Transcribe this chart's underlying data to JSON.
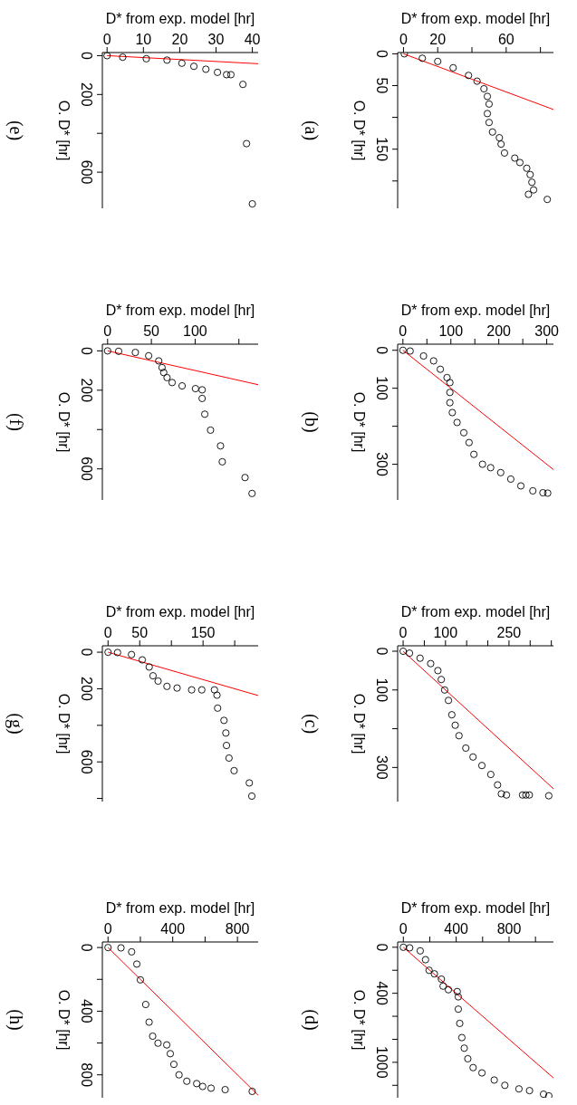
{
  "chart_data": [
    {
      "type": "scatter",
      "title": "(a)",
      "xlabel": "D* from exp. model [hr]",
      "ylabel": "O. D* [hr]",
      "xlim": [
        -3.4,
        87.6
      ],
      "xticks": [
        0,
        20,
        {
          "value": 40,
          "label": null
        },
        60,
        {
          "value": 80,
          "label": null
        }
      ],
      "ylim": [
        243,
        -2
      ],
      "yticks": [
        0,
        50,
        {
          "value": 100,
          "label": null
        },
        150,
        {
          "value": 200,
          "label": null
        }
      ],
      "series": [
        {
          "marker": "circle",
          "color": "#000000",
          "x": [
            0.5,
            11,
            20,
            29,
            38,
            43,
            47,
            49,
            50,
            49,
            50,
            52,
            56,
            57,
            59,
            65,
            68,
            72,
            74,
            75,
            76,
            73,
            84
          ],
          "values": [
            0,
            7,
            12,
            22,
            34,
            43,
            55,
            67,
            79,
            94,
            108,
            123,
            132,
            142,
            156,
            164,
            171,
            180,
            190,
            202,
            214,
            221,
            229
          ]
        },
        {
          "type": "line",
          "color": "#ff0000",
          "x": [
            0,
            87.6
          ],
          "values": [
            0,
            87.6
          ]
        }
      ]
    },
    {
      "type": "scatter",
      "title": "(b)",
      "xlabel": "D* from exp. model [hr]",
      "ylabel": "O. D* [hr]",
      "xlim": [
        -11,
        314
      ],
      "xticks": [
        0,
        {
          "value": 50,
          "label": null
        },
        100,
        {
          "value": 150,
          "label": null
        },
        200,
        {
          "value": 250,
          "label": null
        },
        300
      ],
      "ylim": [
        394,
        -16
      ],
      "yticks": [
        0,
        100,
        {
          "value": 200,
          "label": null
        },
        300
      ],
      "series": [
        {
          "marker": "circle",
          "color": "#000000",
          "x": [
            0,
            15,
            43,
            64,
            78,
            92,
            98,
            98,
            98,
            103,
            113,
            127,
            138,
            148,
            166,
            183,
            204,
            225,
            246,
            271,
            292,
            302
          ],
          "values": [
            0,
            2,
            15,
            28,
            50,
            72,
            85,
            111,
            138,
            164,
            190,
            217,
            243,
            274,
            300,
            309,
            322,
            339,
            357,
            370,
            375,
            376
          ]
        },
        {
          "type": "line",
          "color": "#ff0000",
          "x": [
            0,
            314
          ],
          "values": [
            0,
            314
          ]
        }
      ]
    },
    {
      "type": "scatter",
      "title": "(c)",
      "xlabel": "D* from exp. model [hr]",
      "ylabel": "O. D* [hr]",
      "xlim": [
        -13,
        355
      ],
      "xticks": [
        0,
        {
          "value": 50,
          "label": null
        },
        100,
        {
          "value": 150,
          "label": null
        },
        {
          "value": 200,
          "label": null
        },
        250,
        {
          "value": 300,
          "label": null
        },
        {
          "value": 350,
          "label": null
        }
      ],
      "ylim": [
        388,
        -14
      ],
      "yticks": [
        0,
        100,
        {
          "value": 200,
          "label": null
        },
        300
      ],
      "series": [
        {
          "marker": "circle",
          "color": "#000000",
          "x": [
            0,
            15,
            40,
            65,
            82,
            90,
            98,
            107,
            115,
            123,
            132,
            148,
            165,
            186,
            207,
            223,
            232,
            244,
            282,
            290,
            298,
            344
          ],
          "values": [
            0,
            5,
            18,
            32,
            50,
            73,
            100,
            127,
            164,
            191,
            218,
            250,
            273,
            295,
            318,
            345,
            368,
            371,
            371,
            371,
            371,
            373
          ]
        },
        {
          "type": "line",
          "color": "#ff0000",
          "x": [
            0,
            355
          ],
          "values": [
            0,
            355
          ]
        }
      ]
    },
    {
      "type": "scatter",
      "title": "(d)",
      "xlabel": "D* from exp. model [hr]",
      "ylabel": "O. D* [hr]",
      "xlim": [
        -43,
        1136
      ],
      "xticks": [
        0,
        {
          "value": 200,
          "label": null
        },
        400,
        {
          "value": 600,
          "label": null
        },
        800,
        {
          "value": 1000,
          "label": null
        }
      ],
      "ylim": [
        1308,
        -46
      ],
      "yticks": [
        0,
        {
          "value": 200,
          "label": null
        },
        400,
        {
          "value": 600,
          "label": null
        },
        {
          "value": 800,
          "label": null
        },
        1000,
        {
          "value": 1200,
          "label": null
        }
      ],
      "series": [
        {
          "marker": "circle",
          "color": "#000000",
          "x": [
            0,
            48,
            128,
            168,
            195,
            235,
            288,
            301,
            341,
            408,
            416,
            416,
            427,
            443,
            461,
            488,
            528,
            595,
            688,
            768,
            875,
            955,
            1061,
            1101
          ],
          "values": [
            0,
            5,
            31,
            108,
            200,
            231,
            277,
            338,
            369,
            385,
            431,
            538,
            662,
            785,
            877,
            969,
            1046,
            1092,
            1154,
            1200,
            1231,
            1246,
            1277,
            1292
          ]
        },
        {
          "type": "line",
          "color": "#ff0000",
          "x": [
            0,
            1136
          ],
          "values": [
            0,
            1136
          ]
        }
      ]
    },
    {
      "type": "scatter",
      "title": "(e)",
      "xlabel": "D* from exp. model [hr]",
      "ylabel": "O. D* [hr]",
      "xlim": [
        -1.3,
        41.6
      ],
      "xticks": [
        0,
        10,
        20,
        30,
        40
      ],
      "ylim": [
        786,
        -16
      ],
      "yticks": [
        0,
        200,
        {
          "value": 400,
          "label": null
        },
        600
      ],
      "series": [
        {
          "marker": "circle",
          "color": "#000000",
          "x": [
            0,
            4.3,
            10.8,
            16.5,
            20.6,
            23.9,
            27.2,
            30.4,
            32.9,
            34.1,
            37.4,
            38.4,
            40
          ],
          "values": [
            0,
            8,
            16,
            23,
            39,
            55,
            70,
            86,
            98,
            98,
            148,
            453,
            763
          ]
        },
        {
          "type": "line",
          "color": "#ff0000",
          "x": [
            0,
            41.6
          ],
          "values": [
            0,
            41.6
          ]
        }
      ]
    },
    {
      "type": "scatter",
      "title": "(f)",
      "xlabel": "D* from exp. model [hr]",
      "ylabel": "O. D* [hr]",
      "xlim": [
        -6,
        172
      ],
      "xticks": [
        0,
        50,
        100,
        {
          "value": 150,
          "label": null
        }
      ],
      "ylim": [
        758,
        -34
      ],
      "yticks": [
        0,
        200,
        {
          "value": 400,
          "label": null
        },
        600
      ],
      "series": [
        {
          "marker": "circle",
          "color": "#000000",
          "x": [
            0,
            12.6,
            31.7,
            46.9,
            58.4,
            62.2,
            64.1,
            67.9,
            73.7,
            85.1,
            100.4,
            108,
            108,
            111,
            117.6,
            129,
            131,
            157,
            165
          ],
          "values": [
            0,
            2,
            8,
            25,
            51,
            85,
            110,
            136,
            161,
            178,
            192,
            198,
            242,
            322,
            403,
            483,
            564,
            644,
            725
          ]
        },
        {
          "type": "line",
          "color": "#ff0000",
          "x": [
            0,
            172
          ],
          "values": [
            0,
            172
          ]
        }
      ]
    },
    {
      "type": "scatter",
      "title": "(g)",
      "xlabel": "D* from exp. model [hr]",
      "ylabel": "O. D* [hr]",
      "xlim": [
        -9,
        237
      ],
      "xticks": [
        0,
        50,
        {
          "value": 100,
          "label": null
        },
        150,
        {
          "value": 200,
          "label": null
        }
      ],
      "ylim": [
        817,
        -35
      ],
      "yticks": [
        0,
        200,
        {
          "value": 400,
          "label": null
        },
        600,
        {
          "value": 800,
          "label": null
        }
      ],
      "series": [
        {
          "marker": "circle",
          "color": "#000000",
          "x": [
            0,
            15,
            37,
            54,
            65,
            71,
            79,
            93,
            109,
            132,
            148,
            168,
            172,
            173,
            183,
            186,
            187,
            191,
            199,
            223,
            227
          ],
          "values": [
            0,
            2,
            13,
            42,
            81,
            129,
            158,
            187,
            196,
            206,
            206,
            206,
            235,
            306,
            373,
            442,
            510,
            579,
            648,
            715,
            787
          ]
        },
        {
          "type": "line",
          "color": "#ff0000",
          "x": [
            0,
            237
          ],
          "values": [
            0,
            237
          ]
        }
      ]
    },
    {
      "type": "scatter",
      "title": "(h)",
      "xlabel": "D* from exp. model [hr]",
      "ylabel": "O. D* [hr]",
      "xlim": [
        -35,
        928
      ],
      "xticks": [
        0,
        {
          "value": 200,
          "label": null
        },
        400,
        {
          "value": 600,
          "label": null
        },
        800
      ],
      "ylim": [
        944,
        -35
      ],
      "yticks": [
        0,
        {
          "value": 200,
          "label": null
        },
        400,
        {
          "value": 600,
          "label": null
        },
        800
      ],
      "series": [
        {
          "marker": "circle",
          "color": "#000000",
          "x": [
            0,
            80,
            146,
            178,
            200,
            233,
            254,
            276,
            309,
            363,
            385,
            407,
            439,
            487,
            548,
            585,
            637,
            724,
            891
          ],
          "values": [
            0,
            2,
            27,
            104,
            203,
            358,
            469,
            557,
            601,
            612,
            667,
            734,
            800,
            840,
            855,
            873,
            884,
            893,
            904
          ]
        },
        {
          "type": "line",
          "color": "#ff0000",
          "x": [
            0,
            928
          ],
          "values": [
            0,
            928
          ]
        }
      ]
    }
  ]
}
